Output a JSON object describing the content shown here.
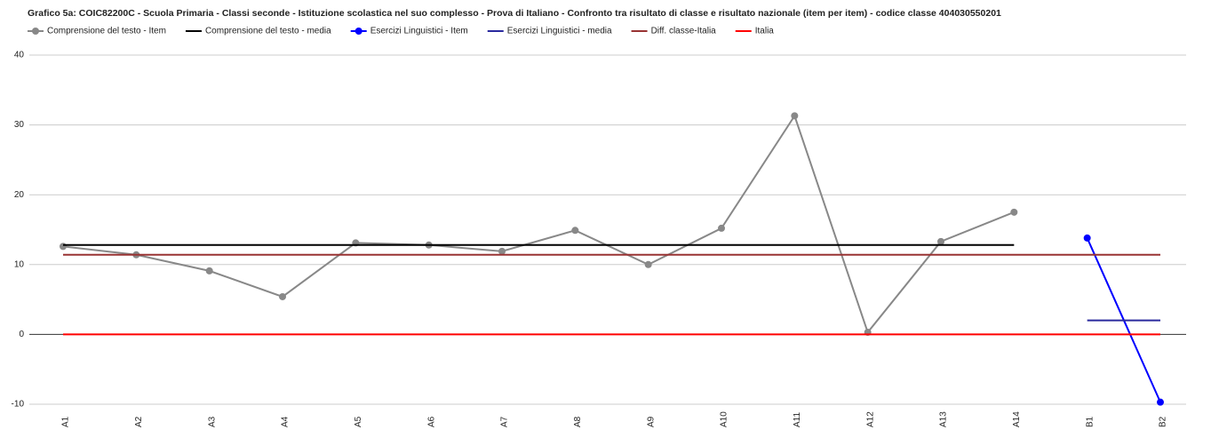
{
  "chart_data": {
    "type": "line",
    "title": "Grafico 5a: COIC82200C - Scuola Primaria - Classi seconde - Istituzione scolastica nel suo complesso - Prova di Italiano - Confronto tra risultato di classe e risultato nazionale (item per item) - codice classe 404030550201",
    "categories": [
      "A1",
      "A2",
      "A3",
      "A4",
      "A5",
      "A6",
      "A7",
      "A8",
      "A9",
      "A10",
      "A11",
      "A12",
      "A13",
      "A14",
      "B1",
      "B2"
    ],
    "series": [
      {
        "name": "Comprensione del testo - Item",
        "color": "#888888",
        "marker": true,
        "values": [
          12.6,
          11.4,
          9.1,
          5.4,
          13.1,
          12.8,
          11.9,
          14.9,
          10.0,
          15.2,
          31.3,
          0.3,
          13.3,
          17.5,
          null,
          null
        ]
      },
      {
        "name": "Comprensione del testo - media",
        "color": "#000000",
        "marker": false,
        "values": [
          12.8,
          12.8,
          12.8,
          12.8,
          12.8,
          12.8,
          12.8,
          12.8,
          12.8,
          12.8,
          12.8,
          12.8,
          12.8,
          12.8,
          null,
          null
        ]
      },
      {
        "name": "Esercizi Linguistici - Item",
        "color": "#0000ff",
        "marker": true,
        "values": [
          null,
          null,
          null,
          null,
          null,
          null,
          null,
          null,
          null,
          null,
          null,
          null,
          null,
          null,
          13.8,
          -9.7
        ]
      },
      {
        "name": "Esercizi Linguistici - media",
        "color": "#2a2a9e",
        "marker": false,
        "values": [
          null,
          null,
          null,
          null,
          null,
          null,
          null,
          null,
          null,
          null,
          null,
          null,
          null,
          null,
          2.0,
          2.0
        ]
      },
      {
        "name": "Diff. classe-Italia",
        "color": "#993333",
        "marker": false,
        "values": [
          11.4,
          11.4,
          11.4,
          11.4,
          11.4,
          11.4,
          11.4,
          11.4,
          11.4,
          11.4,
          11.4,
          11.4,
          11.4,
          11.4,
          11.4,
          11.4
        ]
      },
      {
        "name": "Italia",
        "color": "#ff0000",
        "marker": false,
        "values": [
          0,
          0,
          0,
          0,
          0,
          0,
          0,
          0,
          0,
          0,
          0,
          0,
          0,
          0,
          0,
          0
        ]
      }
    ],
    "ylim": [
      -10,
      40
    ],
    "yticks": [
      -10,
      0,
      10,
      20,
      30,
      40
    ],
    "grid": true
  }
}
